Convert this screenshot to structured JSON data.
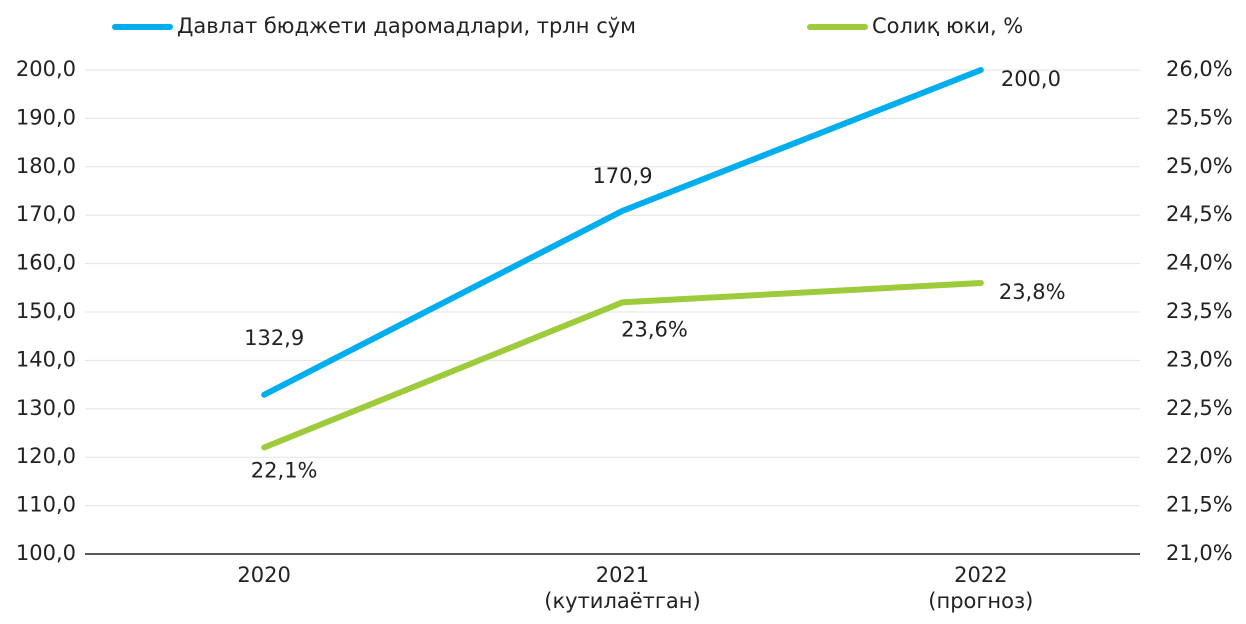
{
  "chart_data": {
    "type": "line",
    "categories": [
      "2020",
      "2021\n(кутилаётган)",
      "2022\n(прогноз)"
    ],
    "series": [
      {
        "name": "Давлат бюджети даромадлари, трлн сўм",
        "color": "#00aeef",
        "values": [
          132.9,
          170.9,
          200.0
        ],
        "value_labels": [
          "132,9",
          "170,9",
          "200,0"
        ]
      },
      {
        "name": "Солиқ юки, %",
        "color": "#9dcb3b",
        "axis": "y2",
        "values": [
          22.1,
          23.6,
          23.8
        ],
        "value_labels": [
          "22,1%",
          "23,6%",
          "23,8%"
        ]
      }
    ],
    "ylim": [
      100,
      200
    ],
    "yticks": [
      {
        "value": 100,
        "label": "100,0"
      },
      {
        "value": 110,
        "label": "110,0"
      },
      {
        "value": 120,
        "label": "120,0"
      },
      {
        "value": 130,
        "label": "130,0"
      },
      {
        "value": 140,
        "label": "140,0"
      },
      {
        "value": 150,
        "label": "150,0"
      },
      {
        "value": 160,
        "label": "160,0"
      },
      {
        "value": 170,
        "label": "170,0"
      },
      {
        "value": 180,
        "label": "180,0"
      },
      {
        "value": 190,
        "label": "190,0"
      },
      {
        "value": 200,
        "label": "200,0"
      }
    ],
    "y2lim": [
      21,
      26
    ],
    "y2ticks": [
      {
        "value": 21,
        "label": "21,0%"
      },
      {
        "value": 21.5,
        "label": "21,5%"
      },
      {
        "value": 22,
        "label": "22,0%"
      },
      {
        "value": 22.5,
        "label": "22,5%"
      },
      {
        "value": 23,
        "label": "23,0%"
      },
      {
        "value": 23.5,
        "label": "23,5%"
      },
      {
        "value": 24,
        "label": "24,0%"
      },
      {
        "value": 24.5,
        "label": "24,5%"
      },
      {
        "value": 25,
        "label": "25,0%"
      },
      {
        "value": 25.5,
        "label": "25,5%"
      },
      {
        "value": 26,
        "label": "26,0%"
      }
    ],
    "grid": true,
    "legend": "top"
  }
}
